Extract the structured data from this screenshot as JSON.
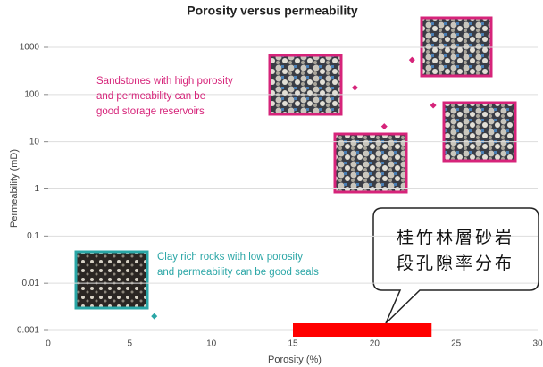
{
  "chart_data": {
    "type": "scatter",
    "title": "Porosity versus permeability",
    "x_label": "Porosity (%)",
    "y_label": "Permeability (mD)",
    "xlim": [
      0,
      30
    ],
    "xticks": [
      0,
      5,
      10,
      15,
      20,
      25,
      30
    ],
    "ylim": [
      0.001,
      1000
    ],
    "yticks": [
      1000,
      100,
      10,
      1,
      0.1,
      0.01,
      0.001
    ],
    "log_y": true,
    "grid": true,
    "series": [
      {
        "color": "#d6247a",
        "x": [
          18.8,
          20.6,
          22.3,
          23.6
        ],
        "values": [
          140,
          21,
          540,
          59
        ]
      },
      {
        "color": "#2aa6a6",
        "x": [
          6.5
        ],
        "values": [
          0.002
        ]
      }
    ],
    "annotations": [
      {
        "color": "#d6247a",
        "lines": [
          "Sandstones with high porosity",
          "and permeability can be",
          "good storage reservoirs"
        ]
      },
      {
        "color": "#2aa6a6",
        "lines": [
          "Clay rich rocks with low porosity",
          "and permeability can be good seals"
        ]
      }
    ],
    "highlight_range": [
      15,
      23.5
    ],
    "highlight_color": "#ff0000",
    "callout": [
      "桂竹林層砂岩",
      "段孔隙率分布"
    ]
  }
}
